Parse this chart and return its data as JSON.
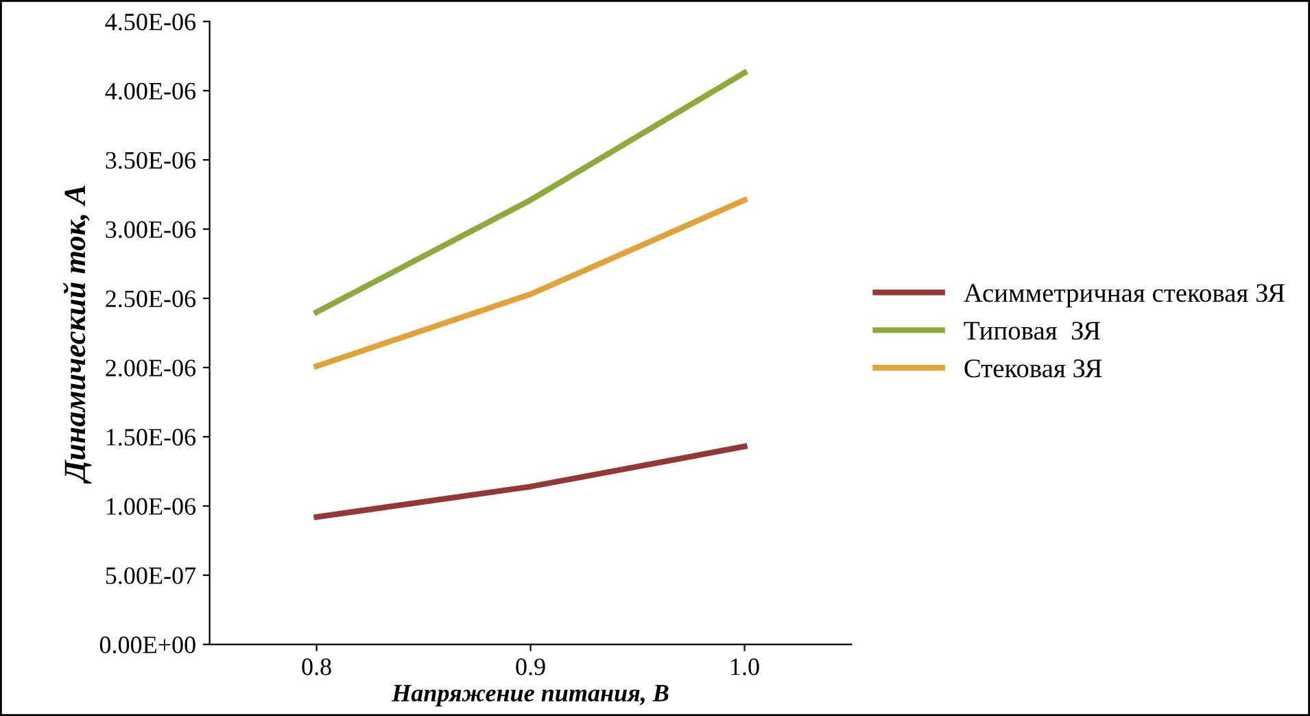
{
  "chart_data": {
    "type": "line",
    "xlabel": "Напряжение питания, В",
    "ylabel": "Динамический ток, А",
    "categories": [
      "0.8",
      "0.9",
      "1.0"
    ],
    "series": [
      {
        "name": "Асимметричная стековая ЗЯ",
        "color": "#953735",
        "values": [
          9.2e-07,
          1.14e-06,
          1.43e-06
        ]
      },
      {
        "name": "Типовая  ЗЯ",
        "color": "#8faa3c",
        "values": [
          2.4e-06,
          3.21e-06,
          4.13e-06
        ]
      },
      {
        "name": "Стековая ЗЯ",
        "color": "#e1a23a",
        "values": [
          2.01e-06,
          2.53e-06,
          3.21e-06
        ]
      }
    ],
    "ylim": [
      0,
      4.5e-06
    ],
    "yticks": [
      {
        "value": 0,
        "label": "0.00E+00"
      },
      {
        "value": 5e-07,
        "label": "5.00E-07"
      },
      {
        "value": 1e-06,
        "label": "1.00E-06"
      },
      {
        "value": 1.5e-06,
        "label": "1.50E-06"
      },
      {
        "value": 2e-06,
        "label": "2.00E-06"
      },
      {
        "value": 2.5e-06,
        "label": "2.50E-06"
      },
      {
        "value": 3e-06,
        "label": "3.00E-06"
      },
      {
        "value": 3.5e-06,
        "label": "3.50E-06"
      },
      {
        "value": 4e-06,
        "label": "4.00E-06"
      },
      {
        "value": 4.5e-06,
        "label": "4.50E-06"
      }
    ],
    "grid": false,
    "legend": "right",
    "marker": "none",
    "line_style": "solid"
  }
}
